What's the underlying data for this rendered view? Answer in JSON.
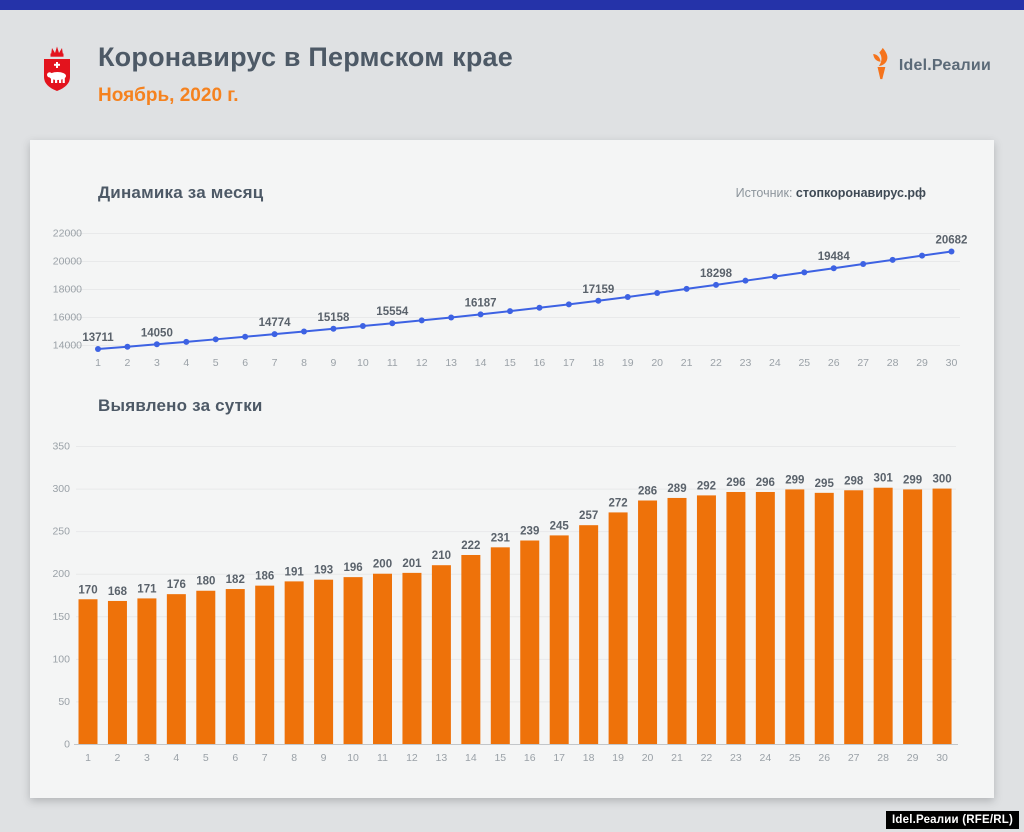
{
  "header": {
    "title": "Коронавирус в Пермском крае",
    "subtitle": "Ноябрь, 2020 г.",
    "brand": "Idel.Реалии"
  },
  "footer": {
    "credit": "Idel.Реалии (RFE/RL)"
  },
  "colors": {
    "topbar": "#2533a9",
    "background": "#dfe1e3",
    "card": "#f4f5f5",
    "accent_orange": "#f5821f",
    "bar": "#ee720a",
    "line": "#3d62e3",
    "heading": "#4d5966",
    "axis_text": "#9aa1a7",
    "value_label": "#5a626b",
    "gridline": "#e8e9ea",
    "emblem_red": "#e3131d"
  },
  "chart_data": [
    {
      "type": "line",
      "title": "Динамика за месяц",
      "source_label": "Источник:",
      "source_value": "стопкоронавирус.рф",
      "days": [
        1,
        2,
        3,
        4,
        5,
        6,
        7,
        8,
        9,
        10,
        11,
        12,
        13,
        14,
        15,
        16,
        17,
        18,
        19,
        20,
        21,
        22,
        23,
        24,
        25,
        26,
        27,
        28,
        29,
        30
      ],
      "values": [
        13711,
        13879,
        14050,
        14226,
        14406,
        14588,
        14774,
        14965,
        15158,
        15354,
        15554,
        15755,
        15965,
        16187,
        16418,
        16657,
        16902,
        17159,
        17431,
        17717,
        18006,
        18298,
        18594,
        18890,
        19189,
        19484,
        19782,
        20083,
        20382,
        20682
      ],
      "annotated_days": [
        1,
        3,
        7,
        9,
        11,
        14,
        18,
        22,
        26,
        30
      ],
      "ylim": [
        13400,
        22000
      ],
      "yticks": [
        14000,
        16000,
        18000,
        20000,
        22000
      ],
      "grid": true,
      "legend": "none"
    },
    {
      "type": "bar",
      "title": "Выявлено за сутки",
      "days": [
        1,
        2,
        3,
        4,
        5,
        6,
        7,
        8,
        9,
        10,
        11,
        12,
        13,
        14,
        15,
        16,
        17,
        18,
        19,
        20,
        21,
        22,
        23,
        24,
        25,
        26,
        27,
        28,
        29,
        30
      ],
      "values": [
        170,
        168,
        171,
        176,
        180,
        182,
        186,
        191,
        193,
        196,
        200,
        201,
        210,
        222,
        231,
        239,
        245,
        257,
        272,
        286,
        289,
        292,
        296,
        296,
        299,
        295,
        298,
        301,
        299,
        300
      ],
      "ylim": [
        0,
        350
      ],
      "yticks": [
        0,
        50,
        100,
        150,
        200,
        250,
        300,
        350
      ],
      "grid": true,
      "legend": "none"
    }
  ]
}
